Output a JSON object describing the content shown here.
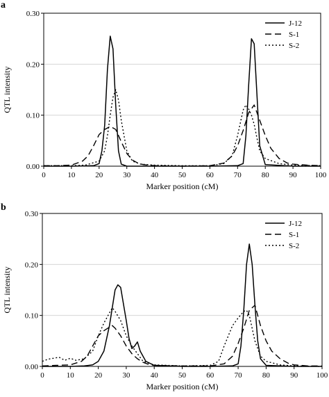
{
  "chart_data": [
    {
      "type": "line",
      "panel_label": "a",
      "xlabel": "Marker position (cM)",
      "ylabel": "QTL intensity",
      "xlim": [
        0,
        100
      ],
      "ylim": [
        0,
        0.3
      ],
      "x_ticks": [
        0,
        10,
        20,
        30,
        40,
        50,
        60,
        70,
        80,
        90,
        100
      ],
      "y_ticks": [
        0,
        0.1,
        0.2,
        0.3
      ],
      "x_tick_labels": [
        "0",
        "10",
        "20",
        "30",
        "40",
        "50",
        "60",
        "70",
        "80",
        "90",
        "100"
      ],
      "y_tick_labels": [
        "0.00",
        "0.10",
        "0.20",
        "0.30"
      ],
      "legend_position": "top-right",
      "series": [
        {
          "name": "J-12",
          "style": "solid",
          "x": [
            0,
            10,
            18,
            20,
            21,
            22,
            23,
            24,
            25,
            26,
            27,
            28,
            30,
            40,
            50,
            60,
            70,
            72,
            73,
            74,
            75,
            76,
            77,
            78,
            80,
            90,
            100
          ],
          "y": [
            0,
            0,
            0.001,
            0.005,
            0.03,
            0.08,
            0.19,
            0.255,
            0.23,
            0.12,
            0.03,
            0.004,
            0,
            0,
            0,
            0,
            0.001,
            0.005,
            0.06,
            0.16,
            0.25,
            0.24,
            0.14,
            0.04,
            0.003,
            0,
            0
          ]
        },
        {
          "name": "S-1",
          "style": "dashed",
          "x": [
            0,
            5,
            10,
            14,
            16,
            18,
            20,
            22,
            24,
            26,
            28,
            30,
            32,
            34,
            36,
            40,
            50,
            60,
            65,
            68,
            70,
            72,
            74,
            76,
            78,
            80,
            82,
            85,
            88,
            90,
            95,
            100
          ],
          "y": [
            0.001,
            0.001,
            0.002,
            0.01,
            0.02,
            0.04,
            0.062,
            0.072,
            0.078,
            0.072,
            0.048,
            0.025,
            0.012,
            0.006,
            0.003,
            0.001,
            0,
            0.001,
            0.006,
            0.02,
            0.04,
            0.07,
            0.105,
            0.12,
            0.09,
            0.06,
            0.035,
            0.015,
            0.006,
            0.004,
            0.002,
            0.001
          ]
        },
        {
          "name": "S-2",
          "style": "dotted",
          "x": [
            0,
            10,
            15,
            20,
            22,
            23,
            24,
            25,
            26,
            27,
            28,
            30,
            32,
            35,
            40,
            50,
            60,
            65,
            68,
            70,
            72,
            73,
            74,
            75,
            76,
            77,
            78,
            80,
            85,
            90,
            100
          ],
          "y": [
            0.001,
            0.001,
            0.002,
            0.01,
            0.03,
            0.06,
            0.1,
            0.135,
            0.15,
            0.13,
            0.09,
            0.03,
            0.01,
            0.004,
            0.002,
            0.001,
            0.001,
            0.005,
            0.02,
            0.06,
            0.11,
            0.12,
            0.112,
            0.1,
            0.082,
            0.055,
            0.03,
            0.015,
            0.005,
            0.002,
            0.001
          ]
        }
      ]
    },
    {
      "type": "line",
      "panel_label": "b",
      "xlabel": "Marker position (cM)",
      "ylabel": "QTL intensity",
      "xlim": [
        0,
        100
      ],
      "ylim": [
        0,
        0.3
      ],
      "x_ticks": [
        0,
        10,
        20,
        30,
        40,
        50,
        60,
        70,
        80,
        90,
        100
      ],
      "y_ticks": [
        0,
        0.1,
        0.2,
        0.3
      ],
      "x_tick_labels": [
        "0",
        "10",
        "20",
        "30",
        "40",
        "50",
        "60",
        "70",
        "80",
        "90",
        "100"
      ],
      "y_tick_labels": [
        "0.00",
        "0.10",
        "0.20",
        "0.30"
      ],
      "legend_position": "top-right",
      "series": [
        {
          "name": "J-12",
          "style": "solid",
          "x": [
            0,
            10,
            15,
            18,
            20,
            22,
            24,
            26,
            27,
            28,
            30,
            31,
            32,
            33,
            34,
            35,
            37,
            40,
            50,
            60,
            68,
            70,
            71,
            72,
            73,
            74,
            75,
            76,
            77,
            78,
            80,
            90,
            100
          ],
          "y": [
            0,
            0,
            0.001,
            0.003,
            0.01,
            0.03,
            0.08,
            0.15,
            0.16,
            0.155,
            0.09,
            0.055,
            0.035,
            0.04,
            0.048,
            0.03,
            0.01,
            0.002,
            0,
            0,
            0.001,
            0.005,
            0.04,
            0.11,
            0.2,
            0.24,
            0.2,
            0.12,
            0.05,
            0.015,
            0.002,
            0,
            0
          ]
        },
        {
          "name": "S-1",
          "style": "dashed",
          "x": [
            0,
            5,
            10,
            14,
            16,
            18,
            20,
            22,
            24,
            25,
            26,
            28,
            30,
            32,
            34,
            36,
            38,
            40,
            50,
            60,
            65,
            68,
            70,
            72,
            74,
            76,
            78,
            80,
            82,
            85,
            88,
            90,
            95,
            100
          ],
          "y": [
            0.001,
            0.002,
            0.003,
            0.01,
            0.02,
            0.04,
            0.06,
            0.07,
            0.077,
            0.08,
            0.075,
            0.06,
            0.04,
            0.025,
            0.015,
            0.008,
            0.004,
            0.002,
            0.001,
            0.001,
            0.005,
            0.02,
            0.045,
            0.075,
            0.11,
            0.12,
            0.08,
            0.05,
            0.03,
            0.015,
            0.006,
            0.003,
            0.001,
            0.001
          ]
        },
        {
          "name": "S-2",
          "style": "dotted",
          "x": [
            0,
            2,
            4,
            6,
            8,
            10,
            12,
            15,
            18,
            20,
            22,
            24,
            25,
            26,
            28,
            30,
            32,
            34,
            36,
            40,
            50,
            60,
            63,
            65,
            68,
            70,
            72,
            73,
            74,
            76,
            78,
            80,
            85,
            90,
            100
          ],
          "y": [
            0.01,
            0.014,
            0.016,
            0.018,
            0.012,
            0.016,
            0.012,
            0.015,
            0.03,
            0.06,
            0.085,
            0.105,
            0.115,
            0.108,
            0.09,
            0.06,
            0.04,
            0.025,
            0.01,
            0.003,
            0.001,
            0.002,
            0.01,
            0.04,
            0.08,
            0.095,
            0.108,
            0.11,
            0.1,
            0.05,
            0.02,
            0.01,
            0.003,
            0.001,
            0
          ]
        }
      ]
    }
  ]
}
